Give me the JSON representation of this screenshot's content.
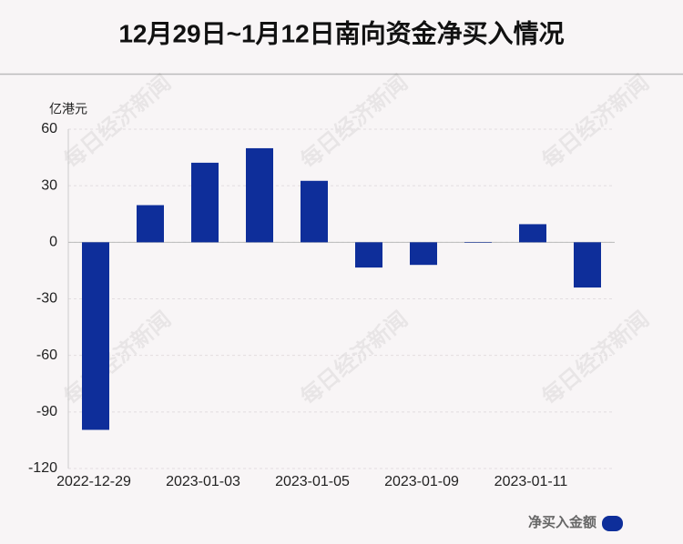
{
  "chart_data": {
    "type": "bar",
    "title": "12月29日~1月12日南向资金净买入情况",
    "y_unit": "亿港元",
    "watermark": "每日经济新闻",
    "categories": [
      "2022-12-29",
      null,
      "2023-01-03",
      null,
      "2023-01-05",
      null,
      "2023-01-09",
      null,
      "2023-01-11",
      null
    ],
    "series": [
      {
        "name": "净买入金额",
        "color": "#0e2e9a",
        "values": [
          -99.5,
          19.7,
          42.2,
          49.9,
          32.6,
          -13.4,
          -12.0,
          -0.2,
          9.6,
          -24.0
        ]
      }
    ],
    "ylim": [
      -120,
      60
    ],
    "yticks": [
      -120,
      -90,
      -60,
      -30,
      0,
      30,
      60
    ],
    "grid": true
  }
}
